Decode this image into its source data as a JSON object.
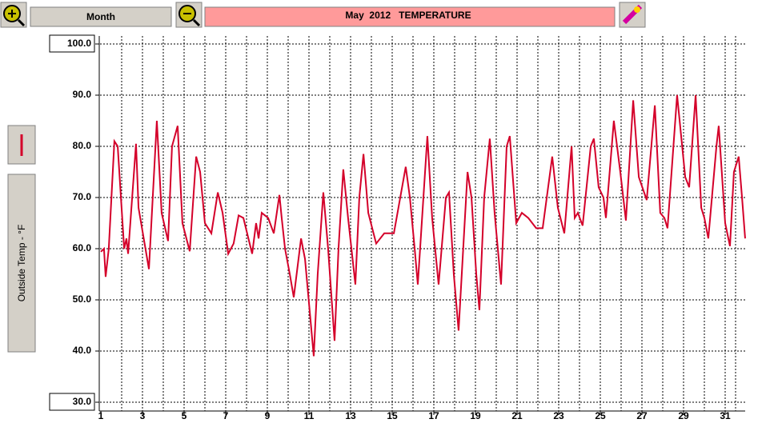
{
  "toolbar": {
    "period": "Month",
    "title": "May  2012   TEMPERATURE"
  },
  "chart_data": {
    "type": "line",
    "y_label": "Outside Temp - °F",
    "xlim": [
      1,
      32
    ],
    "xticks": [
      1,
      3,
      5,
      7,
      9,
      11,
      13,
      15,
      17,
      19,
      21,
      23,
      25,
      27,
      29,
      31
    ],
    "ylim": [
      30,
      100
    ],
    "yticks": [
      {
        "value": 30,
        "label": "30.0"
      },
      {
        "value": 40,
        "label": "40.0"
      },
      {
        "value": 50,
        "label": "50.0"
      },
      {
        "value": 60,
        "label": "60.0"
      },
      {
        "value": 70,
        "label": "70.0"
      },
      {
        "value": 80,
        "label": "80.0"
      },
      {
        "value": 90,
        "label": "90.0"
      },
      {
        "value": 100,
        "label": "100.0"
      }
    ],
    "grid": true,
    "series": [
      {
        "name": "Outside Temp",
        "color": "#d4002a",
        "x": [
          1.0,
          1.15,
          1.23,
          1.38,
          1.65,
          1.81,
          2.12,
          2.23,
          2.31,
          2.69,
          2.81,
          3.31,
          3.69,
          3.92,
          4.23,
          4.42,
          4.69,
          4.92,
          5.27,
          5.58,
          5.77,
          6.0,
          6.31,
          6.62,
          6.85,
          7.12,
          7.38,
          7.62,
          7.85,
          8.27,
          8.46,
          8.58,
          8.73,
          9.04,
          9.31,
          9.58,
          9.69,
          9.85,
          10.08,
          10.27,
          10.62,
          10.81,
          11.23,
          11.42,
          11.69,
          11.92,
          12.23,
          12.42,
          12.65,
          12.88,
          13.23,
          13.42,
          13.62,
          13.85,
          14.23,
          14.62,
          15.08,
          15.65,
          15.85,
          16.08,
          16.23,
          16.69,
          16.92,
          17.23,
          17.58,
          17.73,
          17.96,
          18.19,
          18.62,
          18.81,
          19.04,
          19.19,
          19.42,
          19.69,
          19.92,
          20.23,
          20.5,
          20.65,
          20.96,
          21.23,
          21.54,
          21.92,
          22.23,
          22.69,
          22.96,
          23.27,
          23.62,
          23.77,
          23.92,
          24.15,
          24.54,
          24.69,
          24.92,
          25.15,
          25.27,
          25.65,
          25.96,
          26.23,
          26.58,
          26.85,
          27.23,
          27.62,
          27.88,
          28.08,
          28.23,
          28.69,
          29.08,
          29.27,
          29.58,
          29.85,
          30.0,
          30.19,
          30.58,
          30.69,
          31.0,
          31.23,
          31.42,
          31.65,
          31.81,
          31.96
        ],
        "values": [
          59.4,
          60,
          54.5,
          60,
          81,
          80,
          60,
          62,
          59,
          80.5,
          68,
          56,
          85,
          67,
          61.5,
          80,
          84,
          65,
          59.5,
          78,
          75,
          65,
          63,
          71,
          67,
          59,
          61,
          66.5,
          66,
          59,
          65,
          62,
          67,
          66,
          63,
          70.5,
          66,
          60,
          55,
          50.5,
          62,
          58,
          39,
          55,
          71,
          60,
          42,
          60,
          75.5,
          66,
          53,
          70,
          78.5,
          67,
          61,
          63,
          63,
          76,
          70,
          60,
          53,
          82,
          66,
          53,
          70,
          71,
          55,
          44,
          75,
          70,
          55,
          48,
          70,
          81.5,
          67,
          53,
          80,
          82,
          65,
          67,
          66,
          64,
          64,
          78,
          68,
          63,
          80,
          66,
          67,
          64.5,
          80,
          81.5,
          72,
          70,
          66,
          85,
          75,
          65.5,
          89,
          74,
          69.5,
          88,
          67,
          66,
          64,
          90,
          74,
          72,
          90,
          68,
          66,
          62,
          80,
          84,
          65,
          60.5,
          75,
          78,
          70,
          62
        ]
      }
    ]
  }
}
